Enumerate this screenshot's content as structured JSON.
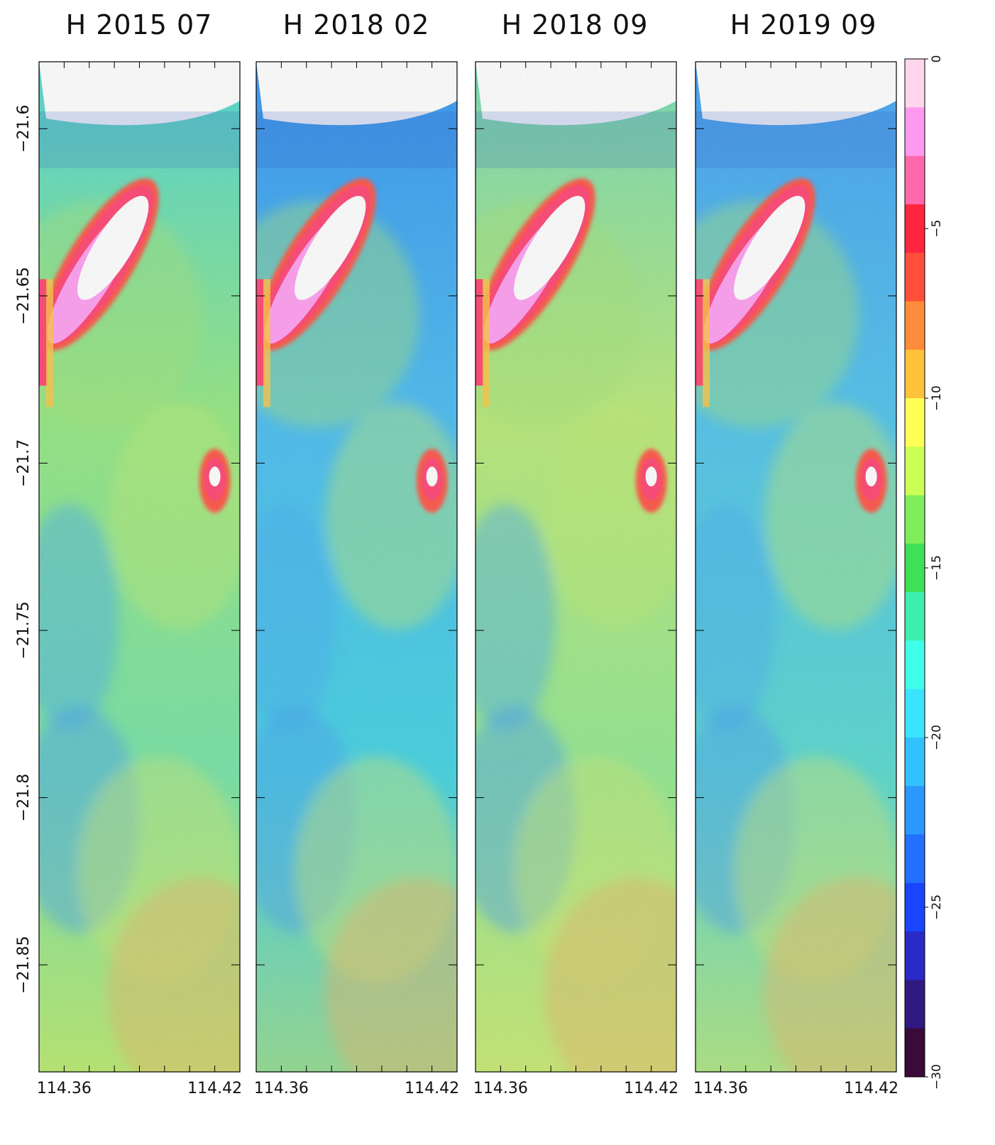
{
  "chart_data": {
    "type": "heatmap",
    "colorbar": {
      "min": -30,
      "max": 0,
      "tick_values": [
        0,
        -5,
        -10,
        -15,
        -20,
        -25,
        -30
      ],
      "tick_labels": [
        "0",
        "−5",
        "−10",
        "−15",
        "−20",
        "−25",
        "−30"
      ],
      "colors": [
        "#ffd6ee",
        "#ff99f0",
        "#ff6aad",
        "#ff2540",
        "#ff4f3a",
        "#ff8c3a",
        "#ffc23a",
        "#ffff55",
        "#ccff55",
        "#7fee5a",
        "#3ee055",
        "#3ef0b0",
        "#3effe8",
        "#3ae4ff",
        "#33c0ff",
        "#2a98ff",
        "#2270ff",
        "#1a45ff",
        "#2a2ac8",
        "#301a80",
        "#3a0a3a"
      ]
    },
    "xlim": [
      114.35,
      114.43
    ],
    "ylim": [
      -21.882,
      -21.58
    ],
    "x_ticks": [
      114.36,
      114.42
    ],
    "x_tick_labels": [
      "114.36",
      "114.42"
    ],
    "y_ticks": [
      -21.6,
      -21.65,
      -21.7,
      -21.75,
      -21.8,
      -21.85
    ],
    "y_tick_labels": [
      "−21.6",
      "−21.65",
      "−21.7",
      "−21.75",
      "−21.8",
      "−21.85"
    ],
    "panels": [
      {
        "title": "H 2015 07",
        "regime": "mid"
      },
      {
        "title": "H 2018 02",
        "regime": "low"
      },
      {
        "title": "H 2018 09",
        "regime": "high"
      },
      {
        "title": "H 2019 09",
        "regime": "low-mid"
      }
    ],
    "features": {
      "island": {
        "lon": 114.377,
        "lat": -21.637
      },
      "islet": {
        "lon": 114.42,
        "lat": -21.704
      }
    }
  }
}
